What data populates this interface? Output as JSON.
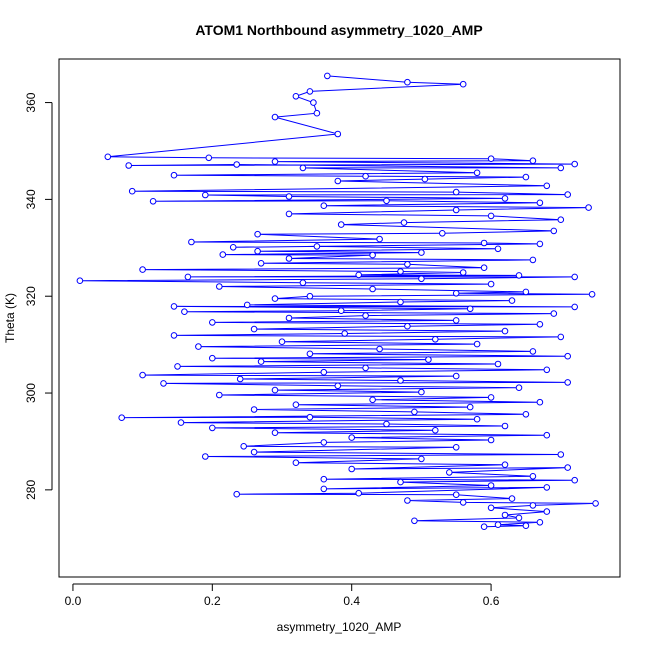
{
  "chart_data": {
    "type": "line",
    "title": "ATOM1 Northbound asymmetry_1020_AMP",
    "xlabel": "asymmetry_1020_AMP",
    "ylabel": "Theta (K)",
    "xlim": [
      -0.02,
      0.785
    ],
    "ylim": [
      262,
      369
    ],
    "x_ticks": [
      0.0,
      0.2,
      0.4,
      0.6
    ],
    "x_tick_labels": [
      "0.0",
      "0.2",
      "0.4",
      "0.6"
    ],
    "y_ticks": [
      280,
      300,
      320,
      340,
      360
    ],
    "y_tick_labels": [
      "280",
      "300",
      "320",
      "340",
      "360"
    ],
    "grid": false,
    "legend": "none",
    "markers": "open-circle",
    "series": [
      {
        "color": "#0000ff",
        "points": [
          [
            0.365,
            365.5
          ],
          [
            0.48,
            364.2
          ],
          [
            0.56,
            363.8
          ],
          [
            0.34,
            362.3
          ],
          [
            0.32,
            361.3
          ],
          [
            0.345,
            360.0
          ],
          [
            0.35,
            357.8
          ],
          [
            0.29,
            357.0
          ],
          [
            0.38,
            353.5
          ],
          [
            0.05,
            348.8
          ],
          [
            0.195,
            348.6
          ],
          [
            0.6,
            348.4
          ],
          [
            0.66,
            348.0
          ],
          [
            0.29,
            347.8
          ],
          [
            0.72,
            347.3
          ],
          [
            0.08,
            347.0
          ],
          [
            0.235,
            347.2
          ],
          [
            0.7,
            346.5
          ],
          [
            0.33,
            346.5
          ],
          [
            0.58,
            345.5
          ],
          [
            0.145,
            345.0
          ],
          [
            0.42,
            344.8
          ],
          [
            0.65,
            344.6
          ],
          [
            0.505,
            344.2
          ],
          [
            0.38,
            343.8
          ],
          [
            0.68,
            342.8
          ],
          [
            0.085,
            341.7
          ],
          [
            0.55,
            341.5
          ],
          [
            0.71,
            341.0
          ],
          [
            0.19,
            340.9
          ],
          [
            0.31,
            340.6
          ],
          [
            0.62,
            340.2
          ],
          [
            0.115,
            339.6
          ],
          [
            0.45,
            339.7
          ],
          [
            0.67,
            339.3
          ],
          [
            0.36,
            338.7
          ],
          [
            0.74,
            338.3
          ],
          [
            0.55,
            337.8
          ],
          [
            0.31,
            337.0
          ],
          [
            0.6,
            336.6
          ],
          [
            0.7,
            335.8
          ],
          [
            0.475,
            335.2
          ],
          [
            0.385,
            334.8
          ],
          [
            0.69,
            333.5
          ],
          [
            0.53,
            333.0
          ],
          [
            0.265,
            332.8
          ],
          [
            0.44,
            331.8
          ],
          [
            0.17,
            331.2
          ],
          [
            0.59,
            331.0
          ],
          [
            0.67,
            330.8
          ],
          [
            0.23,
            330.1
          ],
          [
            0.35,
            330.3
          ],
          [
            0.61,
            329.8
          ],
          [
            0.265,
            329.3
          ],
          [
            0.5,
            329.0
          ],
          [
            0.215,
            328.6
          ],
          [
            0.43,
            328.5
          ],
          [
            0.31,
            327.8
          ],
          [
            0.66,
            327.5
          ],
          [
            0.27,
            326.8
          ],
          [
            0.48,
            326.6
          ],
          [
            0.59,
            325.9
          ],
          [
            0.1,
            325.5
          ],
          [
            0.47,
            325.1
          ],
          [
            0.56,
            324.9
          ],
          [
            0.41,
            324.4
          ],
          [
            0.64,
            324.3
          ],
          [
            0.165,
            324.0
          ],
          [
            0.72,
            324.0
          ],
          [
            0.5,
            323.6
          ],
          [
            0.01,
            323.2
          ],
          [
            0.33,
            322.8
          ],
          [
            0.6,
            322.5
          ],
          [
            0.21,
            322.0
          ],
          [
            0.43,
            321.5
          ],
          [
            0.65,
            320.9
          ],
          [
            0.55,
            320.6
          ],
          [
            0.745,
            320.4
          ],
          [
            0.34,
            320.0
          ],
          [
            0.29,
            319.5
          ],
          [
            0.63,
            319.1
          ],
          [
            0.47,
            318.8
          ],
          [
            0.25,
            318.2
          ],
          [
            0.72,
            317.8
          ],
          [
            0.145,
            317.9
          ],
          [
            0.57,
            317.4
          ],
          [
            0.385,
            317.0
          ],
          [
            0.16,
            316.8
          ],
          [
            0.69,
            316.4
          ],
          [
            0.42,
            316.0
          ],
          [
            0.31,
            315.5
          ],
          [
            0.55,
            315.0
          ],
          [
            0.2,
            314.6
          ],
          [
            0.67,
            314.2
          ],
          [
            0.48,
            313.8
          ],
          [
            0.26,
            313.2
          ],
          [
            0.62,
            312.8
          ],
          [
            0.39,
            312.3
          ],
          [
            0.145,
            311.9
          ],
          [
            0.7,
            311.6
          ],
          [
            0.52,
            311.1
          ],
          [
            0.3,
            310.6
          ],
          [
            0.58,
            310.1
          ],
          [
            0.18,
            309.6
          ],
          [
            0.44,
            309.1
          ],
          [
            0.66,
            308.6
          ],
          [
            0.34,
            308.1
          ],
          [
            0.71,
            307.6
          ],
          [
            0.2,
            307.2
          ],
          [
            0.51,
            306.9
          ],
          [
            0.27,
            306.5
          ],
          [
            0.61,
            306.0
          ],
          [
            0.15,
            305.5
          ],
          [
            0.42,
            305.2
          ],
          [
            0.68,
            304.8
          ],
          [
            0.36,
            304.3
          ],
          [
            0.1,
            303.7
          ],
          [
            0.55,
            303.5
          ],
          [
            0.24,
            302.9
          ],
          [
            0.47,
            302.6
          ],
          [
            0.71,
            302.2
          ],
          [
            0.13,
            302.0
          ],
          [
            0.38,
            301.5
          ],
          [
            0.64,
            301.1
          ],
          [
            0.29,
            300.6
          ],
          [
            0.5,
            300.2
          ],
          [
            0.21,
            299.6
          ],
          [
            0.6,
            299.1
          ],
          [
            0.43,
            298.6
          ],
          [
            0.67,
            298.1
          ],
          [
            0.32,
            297.6
          ],
          [
            0.57,
            297.1
          ],
          [
            0.26,
            296.6
          ],
          [
            0.49,
            296.1
          ],
          [
            0.65,
            295.6
          ],
          [
            0.07,
            294.9
          ],
          [
            0.34,
            295.0
          ],
          [
            0.58,
            294.6
          ],
          [
            0.155,
            293.9
          ],
          [
            0.45,
            293.6
          ],
          [
            0.62,
            293.2
          ],
          [
            0.2,
            292.8
          ],
          [
            0.52,
            292.3
          ],
          [
            0.29,
            291.8
          ],
          [
            0.68,
            291.3
          ],
          [
            0.4,
            290.8
          ],
          [
            0.6,
            290.3
          ],
          [
            0.36,
            289.8
          ],
          [
            0.245,
            289.0
          ],
          [
            0.55,
            288.8
          ],
          [
            0.26,
            287.8
          ],
          [
            0.7,
            287.3
          ],
          [
            0.19,
            286.9
          ],
          [
            0.5,
            286.4
          ],
          [
            0.32,
            285.6
          ],
          [
            0.62,
            285.2
          ],
          [
            0.4,
            284.3
          ],
          [
            0.71,
            284.6
          ],
          [
            0.54,
            283.6
          ],
          [
            0.66,
            282.8
          ],
          [
            0.36,
            282.2
          ],
          [
            0.72,
            282.0
          ],
          [
            0.47,
            281.6
          ],
          [
            0.6,
            280.9
          ],
          [
            0.36,
            280.2
          ],
          [
            0.68,
            280.5
          ],
          [
            0.41,
            279.3
          ],
          [
            0.235,
            279.1
          ],
          [
            0.55,
            279.0
          ],
          [
            0.63,
            278.2
          ],
          [
            0.48,
            277.8
          ],
          [
            0.56,
            277.4
          ],
          [
            0.75,
            277.2
          ],
          [
            0.66,
            276.8
          ],
          [
            0.6,
            276.3
          ],
          [
            0.68,
            275.5
          ],
          [
            0.62,
            274.8
          ],
          [
            0.64,
            274.2
          ],
          [
            0.49,
            273.6
          ],
          [
            0.67,
            273.3
          ],
          [
            0.61,
            272.8
          ],
          [
            0.65,
            272.6
          ],
          [
            0.59,
            272.4
          ]
        ]
      }
    ]
  }
}
